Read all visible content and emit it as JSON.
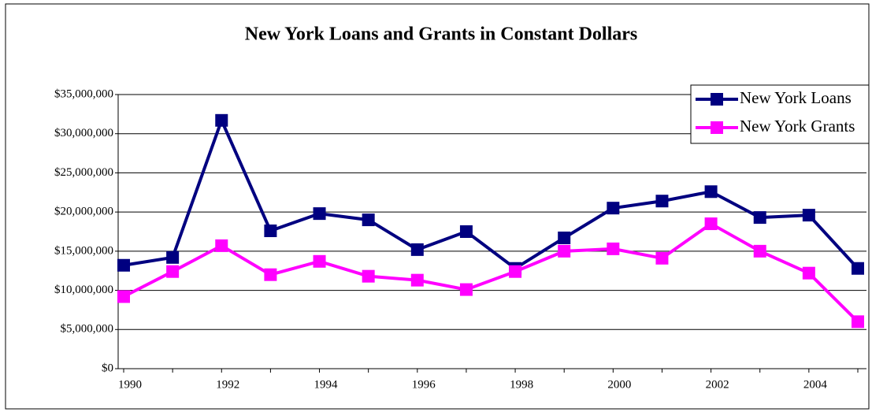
{
  "chart_data": {
    "type": "line",
    "title": "New York Loans and Grants in Constant Dollars",
    "categories": [
      "1990",
      null,
      "1992",
      null,
      "1994",
      null,
      "1996",
      null,
      "1998",
      null,
      "2000",
      null,
      "2002",
      null,
      "2004",
      null
    ],
    "series": [
      {
        "name": "New York Loans",
        "color": "#000080",
        "values": [
          13200000,
          14200000,
          31700000,
          17600000,
          19800000,
          19000000,
          15200000,
          17500000,
          12800000,
          16700000,
          20500000,
          21400000,
          22600000,
          19300000,
          19600000,
          12800000
        ]
      },
      {
        "name": "New York Grants",
        "color": "#ff00ff",
        "values": [
          9200000,
          12400000,
          15700000,
          12000000,
          13700000,
          11800000,
          11300000,
          10100000,
          12400000,
          15000000,
          15300000,
          14100000,
          18500000,
          15000000,
          12200000,
          6000000
        ]
      }
    ],
    "ylim": [
      0,
      35000000
    ],
    "yticks": [
      {
        "value": 0,
        "label": "$0"
      },
      {
        "value": 5000000,
        "label": "$5,000,000"
      },
      {
        "value": 10000000,
        "label": "$10,000,000"
      },
      {
        "value": 15000000,
        "label": "$15,000,000"
      },
      {
        "value": 20000000,
        "label": "$20,000,000"
      },
      {
        "value": 25000000,
        "label": "$25,000,000"
      },
      {
        "value": 30000000,
        "label": "$30,000,000"
      },
      {
        "value": 35000000,
        "label": "$35,000,000"
      }
    ],
    "grid": true,
    "legend": "top-right"
  }
}
